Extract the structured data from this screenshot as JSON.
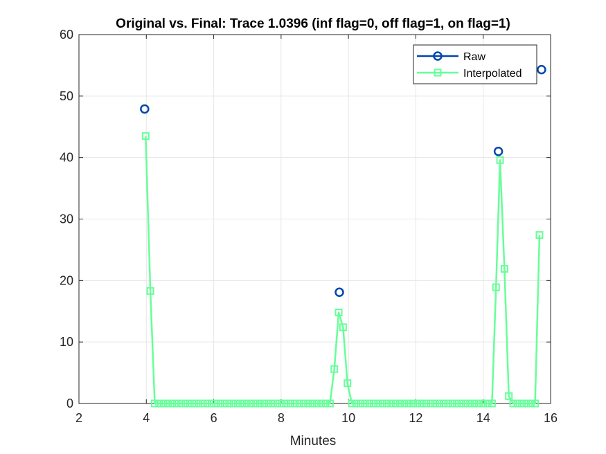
{
  "chart_data": {
    "type": "line",
    "title": "Original vs. Final: Trace 1.0396 (inf flag=0, off flag=1, on flag=1)",
    "xlabel": "Minutes",
    "ylabel": "",
    "xlim": [
      2,
      16
    ],
    "ylim": [
      0,
      60
    ],
    "xticks": [
      2,
      4,
      6,
      8,
      10,
      12,
      14,
      16
    ],
    "yticks": [
      0,
      10,
      20,
      30,
      40,
      50,
      60
    ],
    "grid": true,
    "legend_position": "top-right",
    "series": [
      {
        "name": "Raw",
        "color": "#0047AB",
        "marker": "circle",
        "line": false,
        "x": [
          3.95,
          9.73,
          14.45,
          15.73
        ],
        "y": [
          47.9,
          18.1,
          41.0,
          54.3
        ]
      },
      {
        "name": "Interpolated",
        "color": "#66FF99",
        "marker": "square",
        "line": true,
        "x": [
          3.98,
          4.12,
          4.25,
          4.38,
          4.51,
          4.64,
          4.77,
          4.9,
          5.03,
          5.16,
          5.29,
          5.42,
          5.55,
          5.68,
          5.81,
          5.94,
          6.07,
          6.2,
          6.33,
          6.46,
          6.59,
          6.72,
          6.85,
          6.98,
          7.11,
          7.24,
          7.37,
          7.5,
          7.63,
          7.76,
          7.89,
          8.02,
          8.15,
          8.28,
          8.41,
          8.54,
          8.67,
          8.8,
          8.93,
          9.06,
          9.19,
          9.32,
          9.45,
          9.58,
          9.71,
          9.84,
          9.97,
          10.1,
          10.23,
          10.36,
          10.49,
          10.62,
          10.75,
          10.88,
          11.01,
          11.14,
          11.27,
          11.4,
          11.53,
          11.66,
          11.79,
          11.92,
          12.05,
          12.18,
          12.31,
          12.44,
          12.57,
          12.7,
          12.83,
          12.96,
          13.09,
          13.22,
          13.35,
          13.48,
          13.61,
          13.74,
          13.87,
          14.0,
          14.13,
          14.26,
          14.38,
          14.5,
          14.63,
          14.76,
          14.89,
          15.02,
          15.15,
          15.28,
          15.41,
          15.54,
          15.67
        ],
        "y": [
          43.5,
          18.3,
          0,
          0,
          0,
          0,
          0,
          0,
          0,
          0,
          0,
          0,
          0,
          0,
          0,
          0,
          0,
          0,
          0,
          0,
          0,
          0,
          0,
          0,
          0,
          0,
          0,
          0,
          0,
          0,
          0,
          0,
          0,
          0,
          0,
          0,
          0,
          0,
          0,
          0,
          0,
          0,
          0,
          5.6,
          14.8,
          12.4,
          3.3,
          0,
          0,
          0,
          0,
          0,
          0,
          0,
          0,
          0,
          0,
          0,
          0,
          0,
          0,
          0,
          0,
          0,
          0,
          0,
          0,
          0,
          0,
          0,
          0,
          0,
          0,
          0,
          0,
          0,
          0,
          0,
          0,
          0,
          18.9,
          39.6,
          21.9,
          1.2,
          0,
          0,
          0,
          0,
          0,
          0,
          27.4
        ]
      }
    ]
  }
}
